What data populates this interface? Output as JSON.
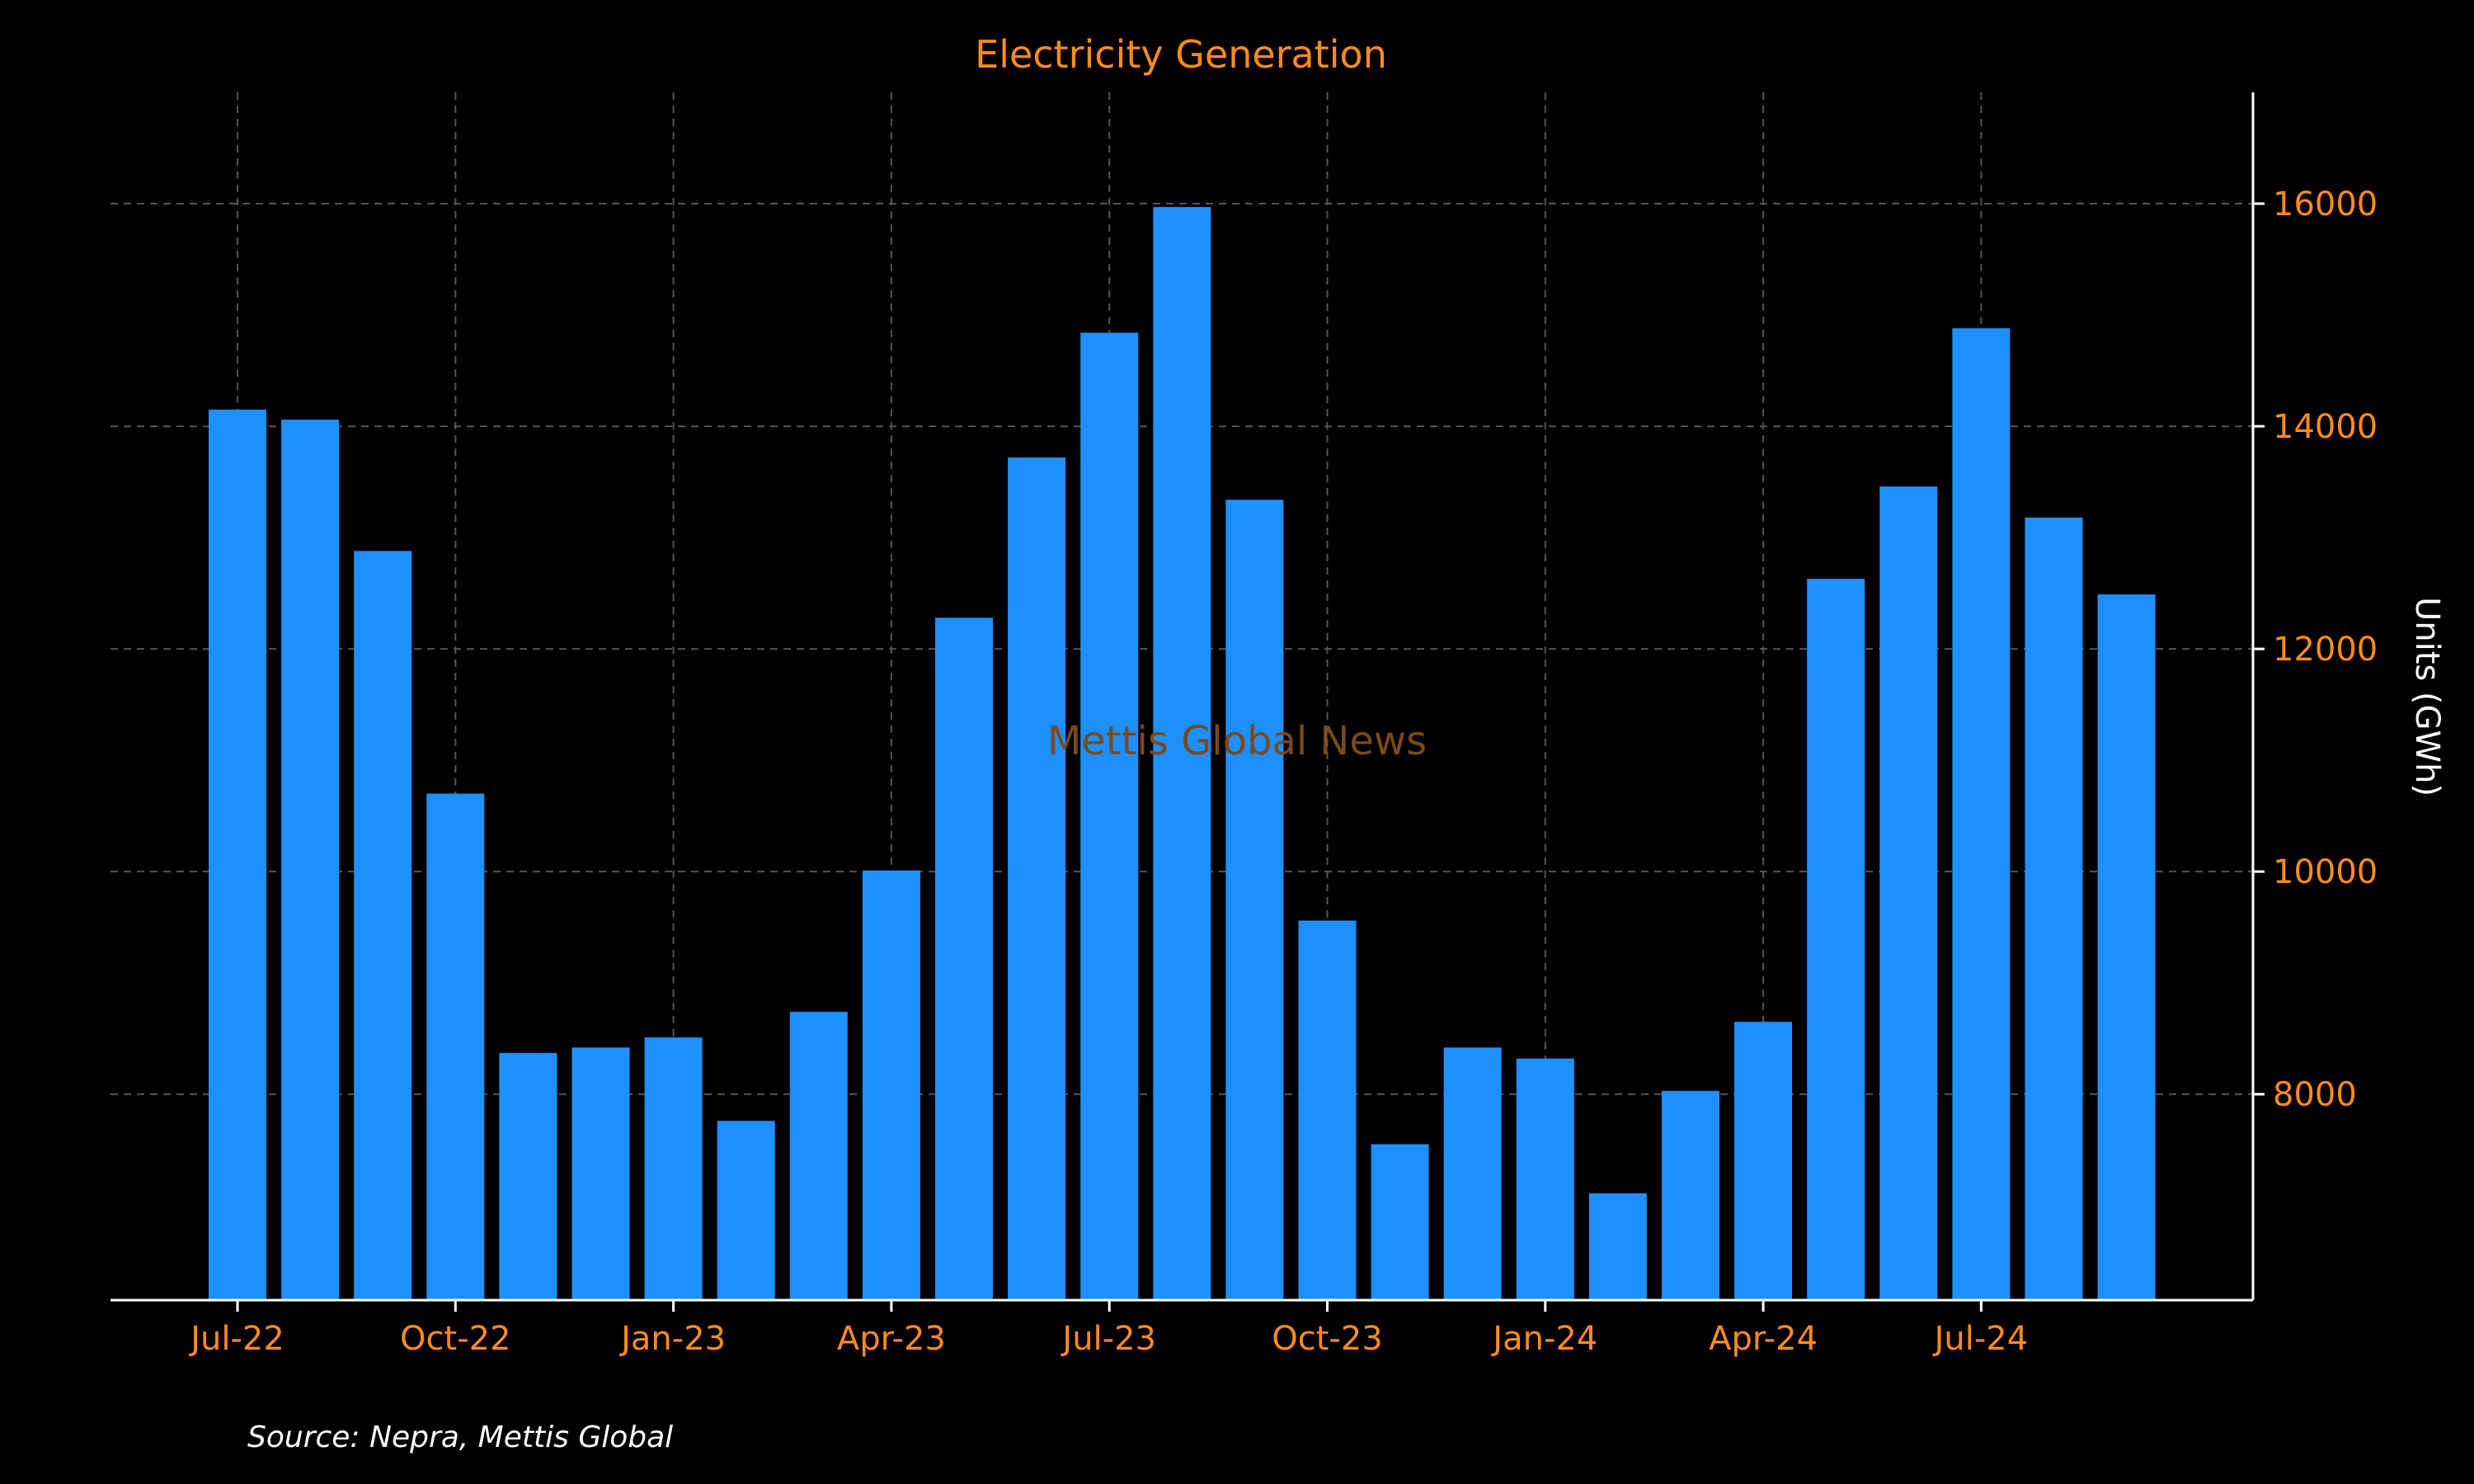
{
  "chart_data": {
    "type": "bar",
    "title": "Electricity Generation",
    "xlabel": "",
    "ylabel": "Units (GWh)",
    "source": "Source: Nepra, Mettis Global",
    "watermark": "Mettis Global News",
    "categories": [
      "Jul-22",
      "Aug-22",
      "Sep-22",
      "Oct-22",
      "Nov-22",
      "Dec-22",
      "Jan-23",
      "Feb-23",
      "Mar-23",
      "Apr-23",
      "May-23",
      "Jun-23",
      "Jul-23",
      "Aug-23",
      "Sep-23",
      "Oct-23",
      "Nov-23",
      "Dec-23",
      "Jan-24",
      "Feb-24",
      "Mar-24",
      "Apr-24",
      "May-24",
      "Jun-24",
      "Jul-24",
      "Aug-24",
      "Sep-24"
    ],
    "values": [
      14150,
      14060,
      12880,
      10700,
      8370,
      8420,
      8510,
      7760,
      8740,
      10010,
      12280,
      13720,
      14840,
      15970,
      13340,
      9560,
      7550,
      8420,
      8320,
      7110,
      8030,
      8650,
      12630,
      13460,
      14880,
      13180,
      12490
    ],
    "xticks": [
      {
        "index": 0,
        "label": "Jul-22"
      },
      {
        "index": 3,
        "label": "Oct-22"
      },
      {
        "index": 6,
        "label": "Jan-23"
      },
      {
        "index": 9,
        "label": "Apr-23"
      },
      {
        "index": 12,
        "label": "Jul-23"
      },
      {
        "index": 15,
        "label": "Oct-23"
      },
      {
        "index": 18,
        "label": "Jan-24"
      },
      {
        "index": 21,
        "label": "Apr-24"
      },
      {
        "index": 24,
        "label": "Jul-24"
      }
    ],
    "yticks": [
      8000,
      10000,
      12000,
      14000,
      16000
    ],
    "ylim": [
      6150,
      17000
    ],
    "y_axis_side": "right",
    "grid": true,
    "legend": "none",
    "colors": {
      "background": "#000000",
      "bar": "#1e90ff",
      "title": "#ff8c1a",
      "tick_label": "#ff8c1a",
      "axis_label": "#ffffff",
      "axis_line": "#ffffff",
      "grid": "#555555",
      "source": "#ffffff",
      "watermark": "#7a4a1a"
    }
  }
}
